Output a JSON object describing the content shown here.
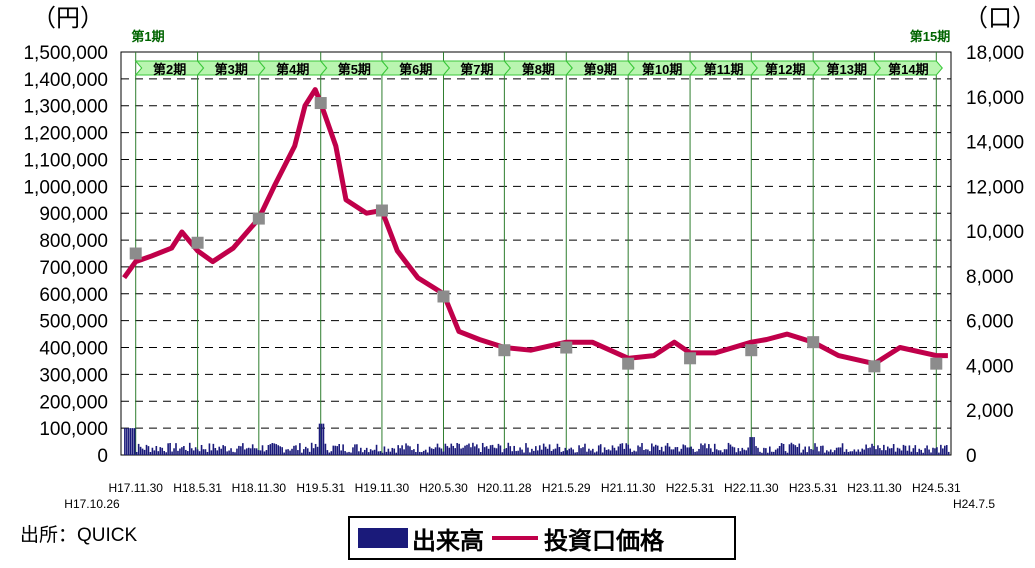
{
  "chart_data": {
    "type": "line",
    "left_axis": {
      "unit_label": "（円）",
      "ylim": [
        0,
        1500000
      ],
      "ticks": [
        "0",
        "100,000",
        "200,000",
        "300,000",
        "400,000",
        "500,000",
        "600,000",
        "700,000",
        "800,000",
        "900,000",
        "1,000,000",
        "1,100,000",
        "1,200,000",
        "1,300,000",
        "1,400,000",
        "1,500,000"
      ]
    },
    "right_axis": {
      "unit_label": "（口）",
      "ylim": [
        0,
        18000
      ],
      "ticks": [
        "0",
        "2,000",
        "4,000",
        "6,000",
        "8,000",
        "10,000",
        "12,000",
        "14,000",
        "16,000",
        "18,000"
      ]
    },
    "x_ticks": [
      "H17.11.30",
      "H18.5.31",
      "H18.11.30",
      "H19.5.31",
      "H19.11.30",
      "H20.5.30",
      "H20.11.28",
      "H21.5.29",
      "H21.11.30",
      "H22.5.31",
      "H22.11.30",
      "H23.5.31",
      "H23.11.30",
      "H24.5.31"
    ],
    "x_start_label": "H17.10.26",
    "x_end_label": "H24.7.5",
    "periods": [
      "第1期",
      "第2期",
      "第3期",
      "第4期",
      "第5期",
      "第6期",
      "第7期",
      "第8期",
      "第9期",
      "第10期",
      "第11期",
      "第12期",
      "第13期",
      "第14期",
      "第15期"
    ],
    "series": [
      {
        "name": "投資口価格",
        "color": "#c0004a",
        "points": [
          [
            "H17.10.26",
            660000
          ],
          [
            "H17.11.30",
            720000
          ],
          [
            "H18.1",
            740000
          ],
          [
            "H18.3",
            770000
          ],
          [
            "H18.4",
            830000
          ],
          [
            "H18.5.31",
            760000
          ],
          [
            "H18.7",
            720000
          ],
          [
            "H18.9",
            770000
          ],
          [
            "H18.11.30",
            880000
          ],
          [
            "H19.1",
            1000000
          ],
          [
            "H19.3",
            1150000
          ],
          [
            "H19.4",
            1300000
          ],
          [
            "H19.5",
            1360000
          ],
          [
            "H19.5.31",
            1310000
          ],
          [
            "H19.7",
            1150000
          ],
          [
            "H19.8",
            950000
          ],
          [
            "H19.10",
            900000
          ],
          [
            "H19.11.30",
            910000
          ],
          [
            "H20.1",
            760000
          ],
          [
            "H20.3",
            660000
          ],
          [
            "H20.5.30",
            600000
          ],
          [
            "H20.7",
            460000
          ],
          [
            "H20.9",
            430000
          ],
          [
            "H20.11.28",
            400000
          ],
          [
            "H21.2",
            390000
          ],
          [
            "H21.5.29",
            420000
          ],
          [
            "H21.8",
            420000
          ],
          [
            "H21.11.30",
            360000
          ],
          [
            "H22.2",
            370000
          ],
          [
            "H22.4",
            420000
          ],
          [
            "H22.5.31",
            380000
          ],
          [
            "H22.8",
            380000
          ],
          [
            "H22.11.30",
            420000
          ],
          [
            "H23.1",
            430000
          ],
          [
            "H23.3",
            450000
          ],
          [
            "H23.5.31",
            420000
          ],
          [
            "H23.8",
            370000
          ],
          [
            "H23.11.30",
            340000
          ],
          [
            "H24.2",
            400000
          ],
          [
            "H24.5.31",
            370000
          ],
          [
            "H24.7.5",
            370000
          ]
        ]
      },
      {
        "name": "出来高",
        "color": "#1a1a7a",
        "type": "bar",
        "note_values": "volume in 口 (right axis)"
      }
    ],
    "settlement_markers": [
      [
        "H17.11.30",
        750000
      ],
      [
        "H18.5.31",
        790000
      ],
      [
        "H18.11.30",
        880000
      ],
      [
        "H19.5.31",
        1310000
      ],
      [
        "H19.11.30",
        910000
      ],
      [
        "H20.5.30",
        590000
      ],
      [
        "H20.11.28",
        390000
      ],
      [
        "H21.5.29",
        400000
      ],
      [
        "H21.11.30",
        340000
      ],
      [
        "H22.5.31",
        360000
      ],
      [
        "H22.11.30",
        390000
      ],
      [
        "H23.5.31",
        420000
      ],
      [
        "H23.11.30",
        330000
      ],
      [
        "H24.5.31",
        340000
      ]
    ],
    "grid": true,
    "legend": "bottom-center"
  },
  "source_label": "出所：QUICK",
  "legend_labels": {
    "volume": "出来高",
    "price": "投資口価格"
  }
}
